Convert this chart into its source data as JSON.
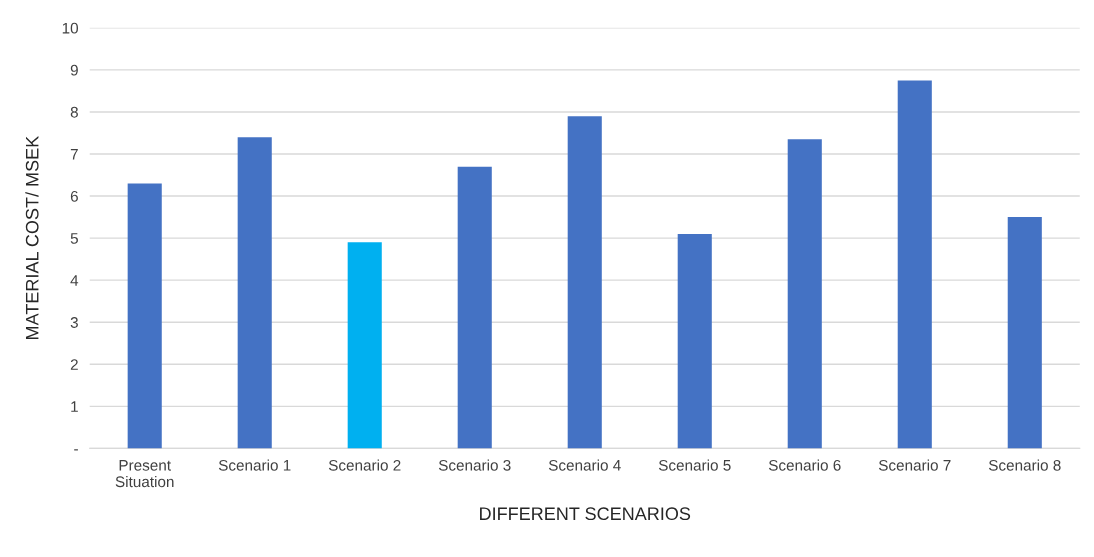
{
  "chart_data": {
    "type": "bar",
    "xlabel": "DIFFERENT SCENARIOS",
    "ylabel": "MATERIAL COST/ MSEK",
    "categories": [
      "Present\nSituation",
      "Scenario 1",
      "Scenario 2",
      "Scenario 3",
      "Scenario 4",
      "Scenario 5",
      "Scenario 6",
      "Scenario 7",
      "Scenario 8"
    ],
    "values": [
      6.3,
      7.4,
      4.9,
      6.7,
      7.9,
      5.1,
      7.35,
      8.75,
      5.5
    ],
    "colors": [
      "#4472c4",
      "#4472c4",
      "#00b0f0",
      "#4472c4",
      "#4472c4",
      "#4472c4",
      "#4472c4",
      "#4472c4",
      "#4472c4"
    ],
    "ylim": [
      0,
      10
    ],
    "yticks": [
      {
        "value": 0,
        "label": "-"
      },
      1,
      2,
      3,
      4,
      5,
      6,
      7,
      8,
      9,
      10
    ],
    "grid": "y"
  }
}
